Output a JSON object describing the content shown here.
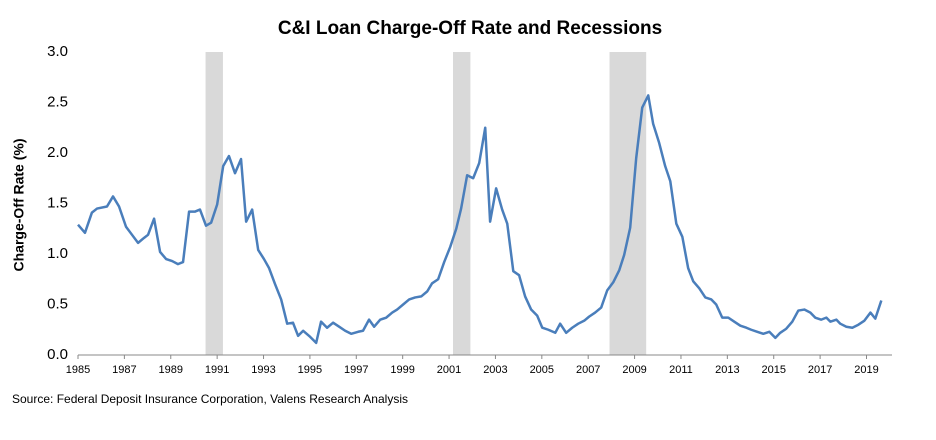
{
  "chart_data": {
    "type": "line",
    "title": "C&I Loan Charge-Off Rate and Recessions",
    "y_label": "Charge-Off Rate (%)",
    "source": "Source: Federal Deposit Insurance Corporation, Valens Research Analysis",
    "x": [
      1985.0,
      1985.3,
      1985.6,
      1985.82,
      1986.25,
      1986.51,
      1986.77,
      1987.07,
      1987.33,
      1987.59,
      1987.85,
      1988.02,
      1988.28,
      1988.54,
      1988.8,
      1989.06,
      1989.31,
      1989.53,
      1989.79,
      1990.05,
      1990.26,
      1990.52,
      1990.74,
      1991.0,
      1991.26,
      1991.51,
      1991.77,
      1992.03,
      1992.25,
      1992.51,
      1992.77,
      1993.02,
      1993.24,
      1993.5,
      1993.76,
      1994.02,
      1994.27,
      1994.49,
      1994.71,
      1995.01,
      1995.27,
      1995.48,
      1995.74,
      1996.0,
      1996.26,
      1996.52,
      1996.78,
      1997.08,
      1997.29,
      1997.55,
      1997.77,
      1998.03,
      1998.29,
      1998.55,
      1998.76,
      1999.02,
      1999.28,
      1999.54,
      1999.8,
      2000.06,
      2000.27,
      2000.53,
      2000.79,
      2001.05,
      2001.31,
      2001.52,
      2001.78,
      2002.04,
      2002.3,
      2002.56,
      2002.77,
      2003.03,
      2003.29,
      2003.51,
      2003.77,
      2004.02,
      2004.28,
      2004.54,
      2004.8,
      2005.02,
      2005.28,
      2005.58,
      2005.79,
      2006.05,
      2006.31,
      2006.57,
      2006.83,
      2007.04,
      2007.3,
      2007.56,
      2007.82,
      2008.08,
      2008.34,
      2008.55,
      2008.81,
      2009.07,
      2009.33,
      2009.59,
      2009.8,
      2010.06,
      2010.32,
      2010.54,
      2010.8,
      2011.06,
      2011.31,
      2011.53,
      2011.79,
      2012.05,
      2012.31,
      2012.52,
      2012.78,
      2013.04,
      2013.3,
      2013.56,
      2013.82,
      2014.03,
      2014.29,
      2014.55,
      2014.81,
      2015.07,
      2015.28,
      2015.54,
      2015.8,
      2016.06,
      2016.32,
      2016.58,
      2016.79,
      2017.05,
      2017.27,
      2017.44,
      2017.7,
      2017.87,
      2018.13,
      2018.39,
      2018.65,
      2018.91,
      2019.17,
      2019.38,
      2019.64
    ],
    "series": [
      {
        "name": "Charge-Off Rate",
        "color": "#4a7ebb",
        "values": [
          1.29,
          1.21,
          1.41,
          1.45,
          1.47,
          1.57,
          1.47,
          1.27,
          1.19,
          1.11,
          1.16,
          1.19,
          1.35,
          1.02,
          0.95,
          0.93,
          0.9,
          0.92,
          1.42,
          1.42,
          1.44,
          1.28,
          1.31,
          1.49,
          1.87,
          1.97,
          1.8,
          1.94,
          1.32,
          1.44,
          1.04,
          0.95,
          0.86,
          0.7,
          0.55,
          0.31,
          0.32,
          0.19,
          0.24,
          0.18,
          0.12,
          0.33,
          0.27,
          0.32,
          0.28,
          0.24,
          0.21,
          0.23,
          0.24,
          0.35,
          0.28,
          0.35,
          0.37,
          0.42,
          0.45,
          0.5,
          0.55,
          0.57,
          0.58,
          0.63,
          0.71,
          0.75,
          0.92,
          1.07,
          1.25,
          1.45,
          1.78,
          1.75,
          1.9,
          2.25,
          1.32,
          1.65,
          1.44,
          1.3,
          0.83,
          0.79,
          0.58,
          0.45,
          0.39,
          0.27,
          0.25,
          0.22,
          0.31,
          0.22,
          0.27,
          0.31,
          0.34,
          0.38,
          0.42,
          0.47,
          0.64,
          0.72,
          0.84,
          0.99,
          1.26,
          1.95,
          2.45,
          2.57,
          2.29,
          2.1,
          1.87,
          1.72,
          1.3,
          1.17,
          0.86,
          0.73,
          0.66,
          0.57,
          0.55,
          0.5,
          0.37,
          0.37,
          0.33,
          0.29,
          0.27,
          0.25,
          0.23,
          0.21,
          0.23,
          0.17,
          0.22,
          0.26,
          0.33,
          0.44,
          0.45,
          0.42,
          0.37,
          0.35,
          0.37,
          0.33,
          0.35,
          0.31,
          0.28,
          0.27,
          0.3,
          0.34,
          0.42,
          0.36,
          0.54
        ]
      }
    ],
    "recessions": [
      [
        1990.5,
        1991.25
      ],
      [
        2001.17,
        2001.92
      ],
      [
        2007.92,
        2009.5
      ]
    ],
    "recession_color": "#d9d9d9",
    "xlim": [
      1985,
      2020.1
    ],
    "xticks": [
      1985,
      1987,
      1989,
      1991,
      1993,
      1995,
      1997,
      1999,
      2001,
      2003,
      2005,
      2007,
      2009,
      2011,
      2013,
      2015,
      2017,
      2019
    ],
    "ylim": [
      0,
      3
    ],
    "yticks": [
      {
        "value": 0,
        "label": "0.0"
      },
      0.5,
      {
        "value": 1,
        "label": "1.0"
      },
      1.5,
      {
        "value": 2,
        "label": "2.0"
      },
      2.5,
      {
        "value": 3,
        "label": "3.0"
      }
    ],
    "grid": false
  }
}
